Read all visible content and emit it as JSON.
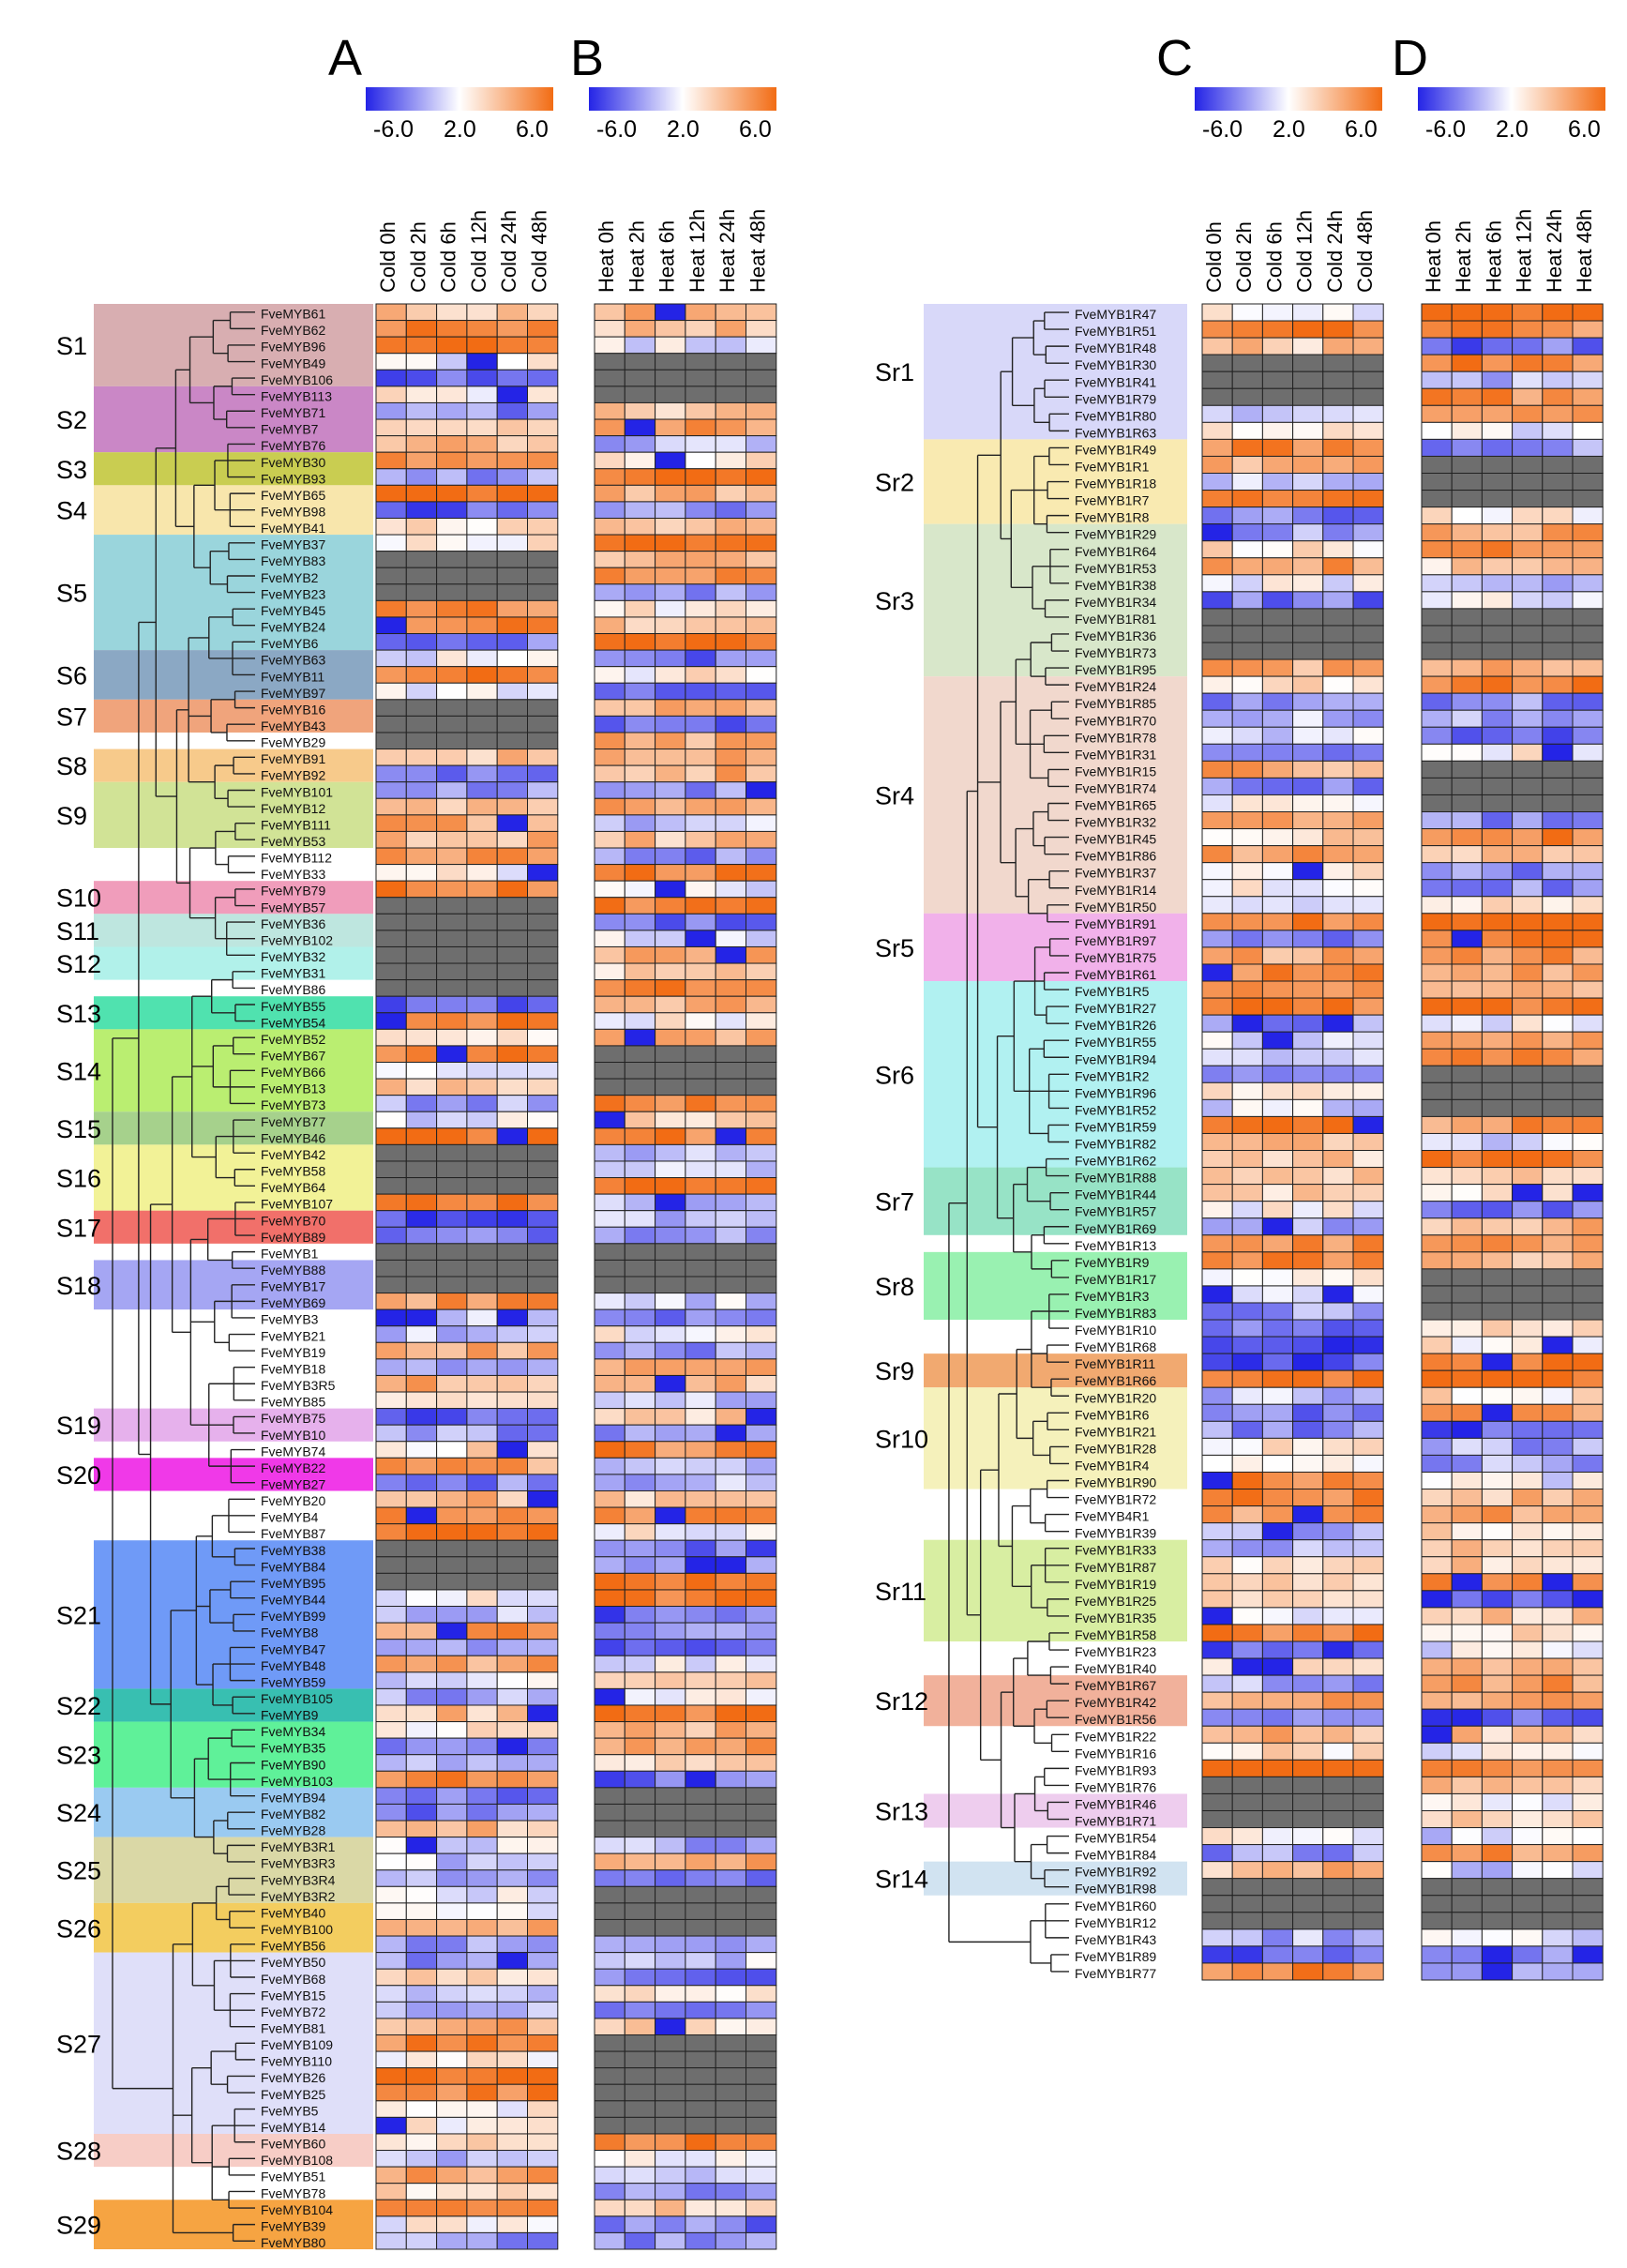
{
  "chart_data": [
    {
      "id": "A",
      "type": "heatmap",
      "title": "A",
      "value_range": [
        -6.0,
        6.0
      ],
      "scale_ticks": [
        "-6.0",
        "2.0",
        "6.0"
      ],
      "columns": [
        "Cold 0h",
        "Cold 2h",
        "Cold 6h",
        "Cold 12h",
        "Cold 24h",
        "Cold 48h"
      ],
      "rows": [
        "FveMYB61",
        "FveMYB62",
        "FveMYB96",
        "FveMYB49",
        "FveMYB106",
        "FveMYB113",
        "FveMYB71",
        "FveMYB7",
        "FveMYB76",
        "FveMYB30",
        "FveMYB93",
        "FveMYB65",
        "FveMYB98",
        "FveMYB41",
        "FveMYB37",
        "FveMYB83",
        "FveMYB2",
        "FveMYB23",
        "FveMYB45",
        "FveMYB24",
        "FveMYB6",
        "FveMYB63",
        "FveMYB11",
        "FveMYB97",
        "FveMYB16",
        "FveMYB43",
        "FveMYB29",
        "FveMYB91",
        "FveMYB92",
        "FveMYB101",
        "FveMYB12",
        "FveMYB111",
        "FveMYB53",
        "FveMYB112",
        "FveMYB33",
        "FveMYB79",
        "FveMYB57",
        "FveMYB36",
        "FveMYB102",
        "FveMYB32",
        "FveMYB31",
        "FveMYB86",
        "FveMYB55",
        "FveMYB54",
        "FveMYB52",
        "FveMYB67",
        "FveMYB66",
        "FveMYB13",
        "FveMYB73",
        "FveMYB77",
        "FveMYB46",
        "FveMYB42",
        "FveMYB58",
        "FveMYB64",
        "FveMYB107",
        "FveMYB70",
        "FveMYB89",
        "FveMYB1",
        "FveMYB88",
        "FveMYB17",
        "FveMYB69",
        "FveMYB3",
        "FveMYB21",
        "FveMYB19",
        "FveMYB18",
        "FveMYB3R5",
        "FveMYB85",
        "FveMYB75",
        "FveMYB10",
        "FveMYB74",
        "FveMYB22",
        "FveMYB27",
        "FveMYB20",
        "FveMYB4",
        "FveMYB87",
        "FveMYB38",
        "FveMYB84",
        "FveMYB95",
        "FveMYB44",
        "FveMYB99",
        "FveMYB8",
        "FveMYB47",
        "FveMYB48",
        "FveMYB59",
        "FveMYB105",
        "FveMYB9",
        "FveMYB34",
        "FveMYB35",
        "FveMYB90",
        "FveMYB103",
        "FveMYB94",
        "FveMYB82",
        "FveMYB28",
        "FveMYB3R1",
        "FveMYB3R3",
        "FveMYB3R4",
        "FveMYB3R2",
        "FveMYB40",
        "FveMYB100",
        "FveMYB56",
        "FveMYB50",
        "FveMYB68",
        "FveMYB15",
        "FveMYB72",
        "FveMYB81",
        "FveMYB109",
        "FveMYB110",
        "FveMYB26",
        "FveMYB25",
        "FveMYB5",
        "FveMYB14",
        "FveMYB60",
        "FveMYB108",
        "FveMYB51",
        "FveMYB78",
        "FveMYB104",
        "FveMYB39",
        "FveMYB80"
      ],
      "subgroups": [
        {
          "label": "S1",
          "start": 0,
          "end": 4,
          "color": "#d4a5a8"
        },
        {
          "label": "S2",
          "start": 5,
          "end": 8,
          "color": "#c47ac0"
        },
        {
          "label": "S3",
          "start": 9,
          "end": 10,
          "color": "#c3c83e"
        },
        {
          "label": "S4",
          "start": 11,
          "end": 13,
          "color": "#f7e3a3"
        },
        {
          "label": "S5",
          "start": 14,
          "end": 20,
          "color": "#8fd0d8"
        },
        {
          "label": "S6",
          "start": 21,
          "end": 23,
          "color": "#7e9fbe"
        },
        {
          "label": "S7",
          "start": 24,
          "end": 25,
          "color": "#ee9a6e"
        },
        {
          "label": "S8",
          "start": 27,
          "end": 28,
          "color": "#f6c47e"
        },
        {
          "label": "S9",
          "start": 29,
          "end": 32,
          "color": "#cce08b"
        },
        {
          "label": "S10",
          "start": 35,
          "end": 36,
          "color": "#ee92b4"
        },
        {
          "label": "S11",
          "start": 37,
          "end": 38,
          "color": "#b7e3dc"
        },
        {
          "label": "S12",
          "start": 39,
          "end": 40,
          "color": "#a8f0e8"
        },
        {
          "label": "S13",
          "start": 42,
          "end": 43,
          "color": "#3ddfa6"
        },
        {
          "label": "S14",
          "start": 44,
          "end": 48,
          "color": "#b2ec62"
        },
        {
          "label": "S15",
          "start": 49,
          "end": 50,
          "color": "#9ccc80"
        },
        {
          "label": "S16",
          "start": 51,
          "end": 54,
          "color": "#f1f18c"
        },
        {
          "label": "S17",
          "start": 55,
          "end": 56,
          "color": "#f0605a"
        },
        {
          "label": "S18",
          "start": 58,
          "end": 60,
          "color": "#9b9cf2"
        },
        {
          "label": "S19",
          "start": 67,
          "end": 68,
          "color": "#e3a8ea"
        },
        {
          "label": "S20",
          "start": 70,
          "end": 71,
          "color": "#ee24e6"
        },
        {
          "label": "S21",
          "start": 75,
          "end": 83,
          "color": "#5f8ff6"
        },
        {
          "label": "S22",
          "start": 84,
          "end": 85,
          "color": "#22b8a8"
        },
        {
          "label": "S23",
          "start": 86,
          "end": 89,
          "color": "#4ef08e"
        },
        {
          "label": "S24",
          "start": 90,
          "end": 92,
          "color": "#8fc4f0"
        },
        {
          "label": "S25",
          "start": 93,
          "end": 96,
          "color": "#d6d49c"
        },
        {
          "label": "S26",
          "start": 97,
          "end": 99,
          "color": "#f2c84e"
        },
        {
          "label": "S27",
          "start": 100,
          "end": 110,
          "color": "#dcdcf8"
        },
        {
          "label": "S28",
          "start": 111,
          "end": 112,
          "color": "#f6c8c0"
        },
        {
          "label": "S29",
          "start": 115,
          "end": 117,
          "color": "#f59a2e"
        }
      ]
    },
    {
      "id": "B",
      "type": "heatmap",
      "title": "B",
      "value_range": [
        -6.0,
        6.0
      ],
      "scale_ticks": [
        "-6.0",
        "2.0",
        "6.0"
      ],
      "columns": [
        "Heat 0h",
        "Heat 2h",
        "Heat 6h",
        "Heat 12h",
        "Heat 24h",
        "Heat 48h"
      ],
      "rows_ref": "A"
    },
    {
      "id": "C",
      "type": "heatmap",
      "title": "C",
      "value_range": [
        -6.0,
        6.0
      ],
      "scale_ticks": [
        "-6.0",
        "2.0",
        "6.0"
      ],
      "columns": [
        "Cold 0h",
        "Cold 2h",
        "Cold 6h",
        "Cold 12h",
        "Cold 24h",
        "Cold 48h"
      ],
      "rows": [
        "FveMYB1R47",
        "FveMYB1R51",
        "FveMYB1R48",
        "FveMYB1R30",
        "FveMYB1R41",
        "FveMYB1R79",
        "FveMYB1R80",
        "FveMYB1R63",
        "FveMYB1R49",
        "FveMYB1R1",
        "FveMYB1R18",
        "FveMYB1R7",
        "FveMYB1R8",
        "FveMYB1R29",
        "FveMYB1R64",
        "FveMYB1R53",
        "FveMYB1R38",
        "FveMYB1R34",
        "FveMYB1R81",
        "FveMYB1R36",
        "FveMYB1R73",
        "FveMYB1R95",
        "FveMYB1R24",
        "FveMYB1R85",
        "FveMYB1R70",
        "FveMYB1R78",
        "FveMYB1R31",
        "FveMYB1R15",
        "FveMYB1R74",
        "FveMYB1R65",
        "FveMYB1R32",
        "FveMYB1R45",
        "FveMYB1R86",
        "FveMYB1R37",
        "FveMYB1R14",
        "FveMYB1R50",
        "FveMYB1R91",
        "FveMYB1R97",
        "FveMYB1R75",
        "FveMYB1R61",
        "FveMYB1R5",
        "FveMYB1R27",
        "FveMYB1R26",
        "FveMYB1R55",
        "FveMYB1R94",
        "FveMYB1R2",
        "FveMYB1R96",
        "FveMYB1R52",
        "FveMYB1R59",
        "FveMYB1R82",
        "FveMYB1R62",
        "FveMYB1R88",
        "FveMYB1R44",
        "FveMYB1R57",
        "FveMYB1R69",
        "FveMYB1R13",
        "FveMYB1R9",
        "FveMYB1R17",
        "FveMYB1R3",
        "FveMYB1R83",
        "FveMYB1R10",
        "FveMYB1R68",
        "FveMYB1R11",
        "FveMYB1R66",
        "FveMYB1R20",
        "FveMYB1R6",
        "FveMYB1R21",
        "FveMYB1R28",
        "FveMYB1R4",
        "FveMYB1R90",
        "FveMYB1R72",
        "FveMYB4R1",
        "FveMYB1R39",
        "FveMYB1R33",
        "FveMYB1R87",
        "FveMYB1R19",
        "FveMYB1R25",
        "FveMYB1R35",
        "FveMYB1R58",
        "FveMYB1R23",
        "FveMYB1R40",
        "FveMYB1R67",
        "FveMYB1R42",
        "FveMYB1R56",
        "FveMYB1R22",
        "FveMYB1R16",
        "FveMYB1R93",
        "FveMYB1R76",
        "FveMYB1R46",
        "FveMYB1R71",
        "FveMYB1R54",
        "FveMYB1R84",
        "FveMYB1R92",
        "FveMYB1R98",
        "FveMYB1R60",
        "FveMYB1R12",
        "FveMYB1R43",
        "FveMYB1R89",
        "FveMYB1R77"
      ],
      "subgroups": [
        {
          "label": "Sr1",
          "start": 0,
          "end": 7,
          "color": "#d4d4f8"
        },
        {
          "label": "Sr2",
          "start": 8,
          "end": 12,
          "color": "#f8e8a8"
        },
        {
          "label": "Sr3",
          "start": 13,
          "end": 21,
          "color": "#d4e4c4"
        },
        {
          "label": "Sr4",
          "start": 22,
          "end": 35,
          "color": "#f0d4c8"
        },
        {
          "label": "Sr5",
          "start": 36,
          "end": 39,
          "color": "#f0a8e8"
        },
        {
          "label": "Sr6",
          "start": 40,
          "end": 50,
          "color": "#a8f0f0"
        },
        {
          "label": "Sr7",
          "start": 51,
          "end": 54,
          "color": "#8ce0c0"
        },
        {
          "label": "Sr8",
          "start": 56,
          "end": 59,
          "color": "#8ef0a8"
        },
        {
          "label": "Sr9",
          "start": 62,
          "end": 63,
          "color": "#f0a060"
        },
        {
          "label": "Sr10",
          "start": 64,
          "end": 69,
          "color": "#f4f0b4"
        },
        {
          "label": "Sr11",
          "start": 73,
          "end": 78,
          "color": "#d4ec98"
        },
        {
          "label": "Sr12",
          "start": 81,
          "end": 83,
          "color": "#f0a890"
        },
        {
          "label": "Sr13",
          "start": 88,
          "end": 89,
          "color": "#ecc8ec"
        },
        {
          "label": "Sr14",
          "start": 92,
          "end": 93,
          "color": "#cce0f0"
        }
      ]
    },
    {
      "id": "D",
      "type": "heatmap",
      "title": "D",
      "value_range": [
        -6.0,
        6.0
      ],
      "scale_ticks": [
        "-6.0",
        "2.0",
        "6.0"
      ],
      "columns": [
        "Heat 0h",
        "Heat 2h",
        "Heat 6h",
        "Heat 12h",
        "Heat 24h",
        "Heat 48h"
      ],
      "rows_ref": "C"
    }
  ],
  "colors": {
    "low": "#2424e6",
    "mid": "#ffffff",
    "high": "#f26c14",
    "missing": "#6e6e6e",
    "grid": "#222222"
  }
}
